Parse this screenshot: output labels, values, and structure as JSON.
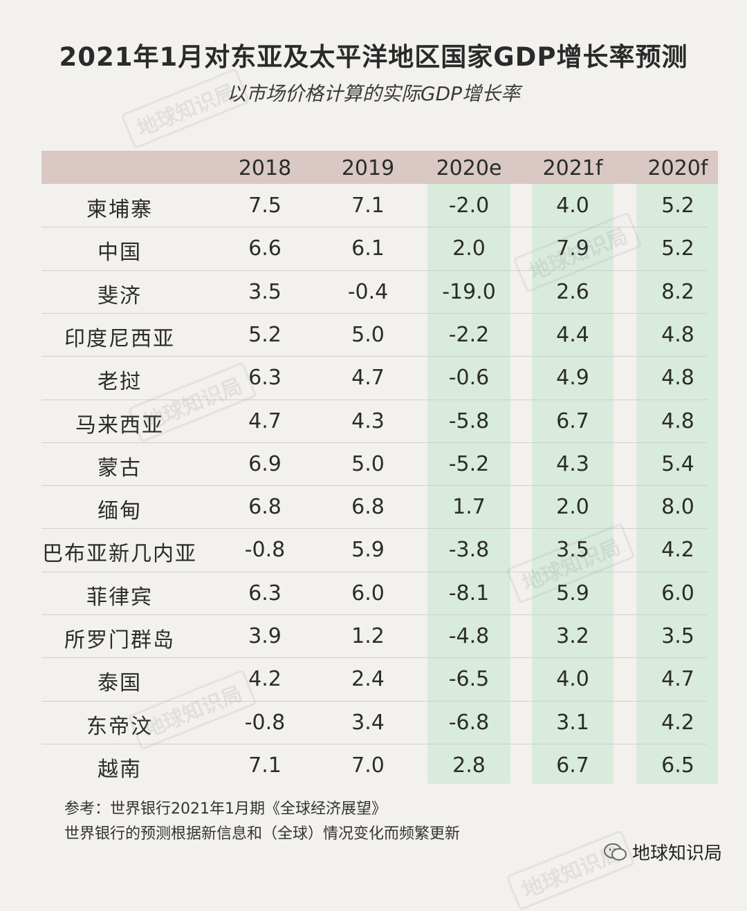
{
  "title": "2021年1月对东亚及太平洋地区国家GDP增长率预测",
  "subtitle": "以市场价格计算的实际GDP增长率",
  "watermark_text": "地球知识局",
  "chart_data": {
    "type": "table",
    "columns": [
      "2018",
      "2019",
      "2020e",
      "2021f",
      "2020f"
    ],
    "highlighted_columns": [
      "2020e",
      "2021f",
      "2020f"
    ],
    "colors": {
      "header": "#d9c8c3",
      "highlight": "#d9ebdc",
      "background": "#f3f1ee"
    },
    "rows": [
      {
        "country": "柬埔寨",
        "values": [
          "7.5",
          "7.1",
          "-2.0",
          "4.0",
          "5.2"
        ]
      },
      {
        "country": "中国",
        "values": [
          "6.6",
          "6.1",
          "2.0",
          "7.9",
          "5.2"
        ]
      },
      {
        "country": "斐济",
        "values": [
          "3.5",
          "-0.4",
          "-19.0",
          "2.6",
          "8.2"
        ]
      },
      {
        "country": "印度尼西亚",
        "values": [
          "5.2",
          "5.0",
          "-2.2",
          "4.4",
          "4.8"
        ]
      },
      {
        "country": "老挝",
        "values": [
          "6.3",
          "4.7",
          "-0.6",
          "4.9",
          "4.8"
        ]
      },
      {
        "country": "马来西亚",
        "values": [
          "4.7",
          "4.3",
          "-5.8",
          "6.7",
          "4.8"
        ]
      },
      {
        "country": "蒙古",
        "values": [
          "6.9",
          "5.0",
          "-5.2",
          "4.3",
          "5.4"
        ]
      },
      {
        "country": "缅甸",
        "values": [
          "6.8",
          "6.8",
          "1.7",
          "2.0",
          "8.0"
        ]
      },
      {
        "country": "巴布亚新几内亚",
        "values": [
          "-0.8",
          "5.9",
          "-3.8",
          "3.5",
          "4.2"
        ]
      },
      {
        "country": "菲律宾",
        "values": [
          "6.3",
          "6.0",
          "-8.1",
          "5.9",
          "6.0"
        ]
      },
      {
        "country": "所罗门群岛",
        "values": [
          "3.9",
          "1.2",
          "-4.8",
          "3.2",
          "3.5"
        ]
      },
      {
        "country": "泰国",
        "values": [
          "4.2",
          "2.4",
          "-6.5",
          "4.0",
          "4.7"
        ]
      },
      {
        "country": "东帝汶",
        "values": [
          "-0.8",
          "3.4",
          "-6.8",
          "3.1",
          "4.2"
        ]
      },
      {
        "country": "越南",
        "values": [
          "7.1",
          "7.0",
          "2.8",
          "6.7",
          "6.5"
        ]
      }
    ]
  },
  "notes": {
    "source": "参考：世界银行2021年1月期《全球经济展望》",
    "disclaimer": "世界银行的预测根据新信息和（全球）情况变化而频繁更新"
  },
  "brand": {
    "label": "地球知识局",
    "icon": "wechat-icon"
  }
}
